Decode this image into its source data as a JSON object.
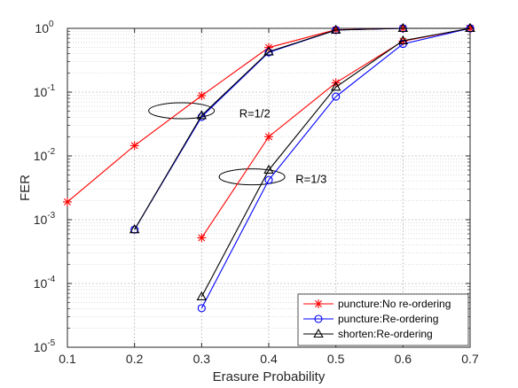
{
  "chart_data": {
    "type": "line",
    "xlabel": "Erasure Probability",
    "ylabel": "FER",
    "xlim": [
      0.1,
      0.7
    ],
    "ylim": [
      1e-05,
      1
    ],
    "yscale": "log",
    "grid": true,
    "x_ticks": [
      "0.1",
      "0.2",
      "0.3",
      "0.4",
      "0.5",
      "0.6",
      "0.7"
    ],
    "y_ticks": [
      {
        "base": "10",
        "exp": "0",
        "value": 1
      },
      {
        "base": "10",
        "exp": "-1",
        "value": 0.1
      },
      {
        "base": "10",
        "exp": "-2",
        "value": 0.01
      },
      {
        "base": "10",
        "exp": "-3",
        "value": 0.001
      },
      {
        "base": "10",
        "exp": "-4",
        "value": 0.0001
      },
      {
        "base": "10",
        "exp": "-5",
        "value": 1e-05
      }
    ],
    "legend_position": "bottom-right",
    "series": [
      {
        "name": "puncture:No re-ordering",
        "color": "#ff0000",
        "marker": "star",
        "rate": "1/2",
        "x": [
          0.1,
          0.2,
          0.3,
          0.4,
          0.5,
          0.6,
          0.7
        ],
        "y": [
          0.0019,
          0.0145,
          0.088,
          0.5,
          0.95,
          1.0,
          1.0
        ]
      },
      {
        "name": "puncture:Re-ordering",
        "color": "#0000ff",
        "marker": "circle",
        "rate": "1/2",
        "x": [
          0.2,
          0.3,
          0.4,
          0.5,
          0.6,
          0.7
        ],
        "y": [
          0.0007,
          0.041,
          0.42,
          0.94,
          1.0,
          1.0
        ]
      },
      {
        "name": "shorten:Re-ordering",
        "color": "#000000",
        "marker": "triangle",
        "rate": "1/2",
        "x": [
          0.2,
          0.3,
          0.4,
          0.5,
          0.6,
          0.7
        ],
        "y": [
          0.0007,
          0.043,
          0.43,
          0.94,
          1.0,
          1.0
        ]
      },
      {
        "name": "puncture:No re-ordering",
        "color": "#ff0000",
        "marker": "star",
        "rate": "1/3",
        "x": [
          0.3,
          0.4,
          0.5,
          0.6,
          0.7
        ],
        "y": [
          0.00052,
          0.02,
          0.14,
          0.63,
          1.0
        ]
      },
      {
        "name": "puncture:Re-ordering",
        "color": "#0000ff",
        "marker": "circle",
        "rate": "1/3",
        "x": [
          0.3,
          0.4,
          0.5,
          0.6,
          0.7
        ],
        "y": [
          4.1e-05,
          0.0042,
          0.085,
          0.57,
          1.0
        ]
      },
      {
        "name": "shorten:Re-ordering",
        "color": "#000000",
        "marker": "triangle",
        "rate": "1/3",
        "x": [
          0.3,
          0.4,
          0.5,
          0.6,
          0.7
        ],
        "y": [
          6.2e-05,
          0.006,
          0.12,
          0.64,
          1.0
        ]
      }
    ],
    "annotations": [
      {
        "text": "R=1/2",
        "x": 0.27,
        "y": 0.051,
        "label_x": 0.356,
        "label_y": 0.047
      },
      {
        "text": "R=1/3",
        "x": 0.375,
        "y": 0.0047,
        "label_x": 0.44,
        "label_y": 0.0044
      }
    ],
    "legend": [
      {
        "label": "puncture:No re-ordering",
        "color": "#ff0000",
        "marker": "star"
      },
      {
        "label": "puncture:Re-ordering",
        "color": "#0000ff",
        "marker": "circle"
      },
      {
        "label": "shorten:Re-ordering",
        "color": "#000000",
        "marker": "triangle"
      }
    ]
  }
}
